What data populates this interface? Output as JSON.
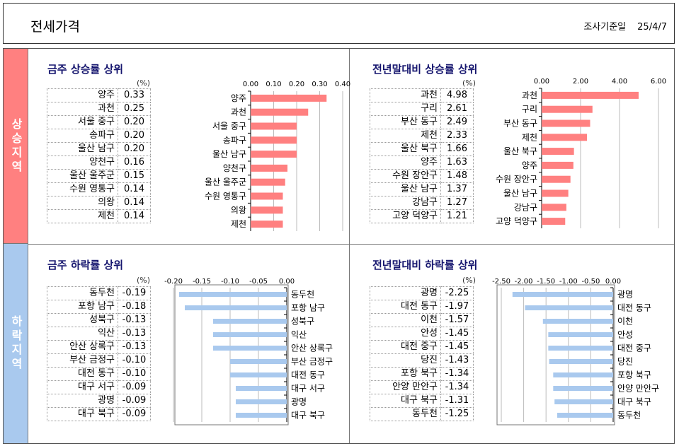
{
  "header": {
    "title": "전세가격",
    "survey_label": "조사기준일",
    "survey_date": "25/4/7"
  },
  "sections": {
    "rise": "상승지역",
    "fall": "하락지역"
  },
  "unit": "(%)",
  "panels": {
    "rise_week": {
      "title": "금주 상승률 상위",
      "table": [
        {
          "name": "양주",
          "value": "0.33"
        },
        {
          "name": "과천",
          "value": "0.25"
        },
        {
          "name": "서울 중구",
          "value": "0.20"
        },
        {
          "name": "송파구",
          "value": "0.20"
        },
        {
          "name": "울산 남구",
          "value": "0.20"
        },
        {
          "name": "양천구",
          "value": "0.16"
        },
        {
          "name": "울산 울주군",
          "value": "0.15"
        },
        {
          "name": "수원 영통구",
          "value": "0.14"
        },
        {
          "name": "의왕",
          "value": "0.14"
        },
        {
          "name": "제천",
          "value": "0.14"
        }
      ]
    },
    "rise_ytd": {
      "title": "전년말대비 상승률 상위",
      "table": [
        {
          "name": "과천",
          "value": "4.98"
        },
        {
          "name": "구리",
          "value": "2.61"
        },
        {
          "name": "부산 동구",
          "value": "2.49"
        },
        {
          "name": "제천",
          "value": "2.33"
        },
        {
          "name": "울산 북구",
          "value": "1.66"
        },
        {
          "name": "양주",
          "value": "1.63"
        },
        {
          "name": "수원 장안구",
          "value": "1.48"
        },
        {
          "name": "울산 남구",
          "value": "1.37"
        },
        {
          "name": "강남구",
          "value": "1.27"
        },
        {
          "name": "고양 덕양구",
          "value": "1.21"
        }
      ]
    },
    "fall_week": {
      "title": "금주 하락률 상위",
      "table": [
        {
          "name": "동두천",
          "value": "-0.19"
        },
        {
          "name": "포항 남구",
          "value": "-0.18"
        },
        {
          "name": "성북구",
          "value": "-0.13"
        },
        {
          "name": "익산",
          "value": "-0.13"
        },
        {
          "name": "안산 상록구",
          "value": "-0.13"
        },
        {
          "name": "부산 금정구",
          "value": "-0.10"
        },
        {
          "name": "대전 동구",
          "value": "-0.10"
        },
        {
          "name": "대구 서구",
          "value": "-0.09"
        },
        {
          "name": "광명",
          "value": "-0.09"
        },
        {
          "name": "대구 북구",
          "value": "-0.09"
        }
      ]
    },
    "fall_ytd": {
      "title": "전년말대비 하락률 상위",
      "table": [
        {
          "name": "광명",
          "value": "-2.25"
        },
        {
          "name": "대전 동구",
          "value": "-1.97"
        },
        {
          "name": "이천",
          "value": "-1.57"
        },
        {
          "name": "안성",
          "value": "-1.45"
        },
        {
          "name": "대전 중구",
          "value": "-1.45"
        },
        {
          "name": "당진",
          "value": "-1.43"
        },
        {
          "name": "포항 북구",
          "value": "-1.34"
        },
        {
          "name": "안양 만안구",
          "value": "-1.34"
        },
        {
          "name": "대구 북구",
          "value": "-1.31"
        },
        {
          "name": "동두천",
          "value": "-1.25"
        }
      ]
    }
  },
  "chart_data": [
    {
      "id": "rise_week",
      "type": "bar",
      "orientation": "horizontal",
      "categories": [
        "양주",
        "과천",
        "서울 중구",
        "송파구",
        "울산 남구",
        "양천구",
        "울산 울주군",
        "수원 영통구",
        "의왕",
        "제천"
      ],
      "values": [
        0.33,
        0.25,
        0.2,
        0.2,
        0.2,
        0.16,
        0.15,
        0.14,
        0.14,
        0.14
      ],
      "xlim": [
        0,
        0.4
      ],
      "ticks": [
        "0.00",
        "0.10",
        "0.20",
        "0.30",
        "0.40"
      ],
      "color": "#ff8080",
      "grid": true
    },
    {
      "id": "rise_ytd",
      "type": "bar",
      "orientation": "horizontal",
      "categories": [
        "과천",
        "구리",
        "부산 동구",
        "제천",
        "울산 북구",
        "양주",
        "수원 장안구",
        "울산 남구",
        "강남구",
        "고양 덕양구"
      ],
      "values": [
        4.98,
        2.61,
        2.49,
        2.33,
        1.66,
        1.63,
        1.48,
        1.37,
        1.27,
        1.21
      ],
      "xlim": [
        0,
        6
      ],
      "ticks": [
        "0.00",
        "2.00",
        "4.00",
        "6.00"
      ],
      "color": "#ff8080",
      "grid": true
    },
    {
      "id": "fall_week",
      "type": "bar",
      "orientation": "horizontal",
      "categories": [
        "동두천",
        "포항 남구",
        "성북구",
        "익산",
        "안산 상록구",
        "부산 금정구",
        "대전 동구",
        "대구 서구",
        "광명",
        "대구 북구"
      ],
      "values": [
        -0.19,
        -0.18,
        -0.13,
        -0.13,
        -0.13,
        -0.1,
        -0.1,
        -0.09,
        -0.09,
        -0.09
      ],
      "xlim": [
        -0.2,
        0
      ],
      "ticks": [
        "-0.20",
        "-0.15",
        "-0.10",
        "-0.05",
        "0.00"
      ],
      "color": "#a9c9ee",
      "grid": true
    },
    {
      "id": "fall_ytd",
      "type": "bar",
      "orientation": "horizontal",
      "categories": [
        "광명",
        "대전 동구",
        "이천",
        "안성",
        "대전 중구",
        "당진",
        "포항 북구",
        "안양 만안구",
        "대구 북구",
        "동두천"
      ],
      "values": [
        -2.25,
        -1.97,
        -1.57,
        -1.45,
        -1.45,
        -1.43,
        -1.34,
        -1.34,
        -1.31,
        -1.25
      ],
      "xlim": [
        -2.5,
        0
      ],
      "ticks": [
        "-2.50",
        "-2.00",
        "-1.50",
        "-1.00",
        "-0.50",
        "0.00"
      ],
      "color": "#a9c9ee",
      "grid": true
    }
  ]
}
